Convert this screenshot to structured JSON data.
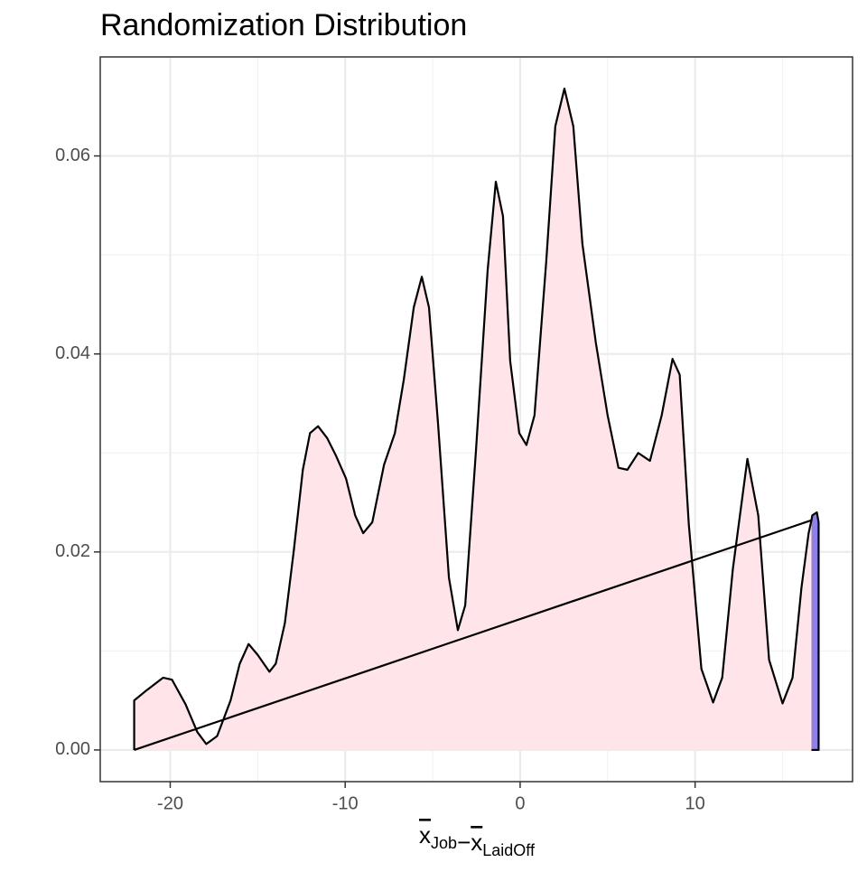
{
  "chart_data": {
    "type": "area",
    "title": "Randomization Distribution",
    "xlabel": [
      {
        "text": "x",
        "sub": "Job"
      },
      {
        "text": "−"
      },
      {
        "text": "x",
        "sub": "LaidOff"
      }
    ],
    "xlim": [
      -24,
      19
    ],
    "ylim": [
      -0.0032,
      0.07
    ],
    "xticks": [
      -20,
      -10,
      0,
      10
    ],
    "yticks": [
      {
        "value": 0,
        "label": "0.00"
      },
      0.02,
      0.04,
      0.06
    ],
    "xminor_ticks": [
      -15,
      -5,
      5,
      15
    ],
    "yminor_ticks": [
      0.01,
      0.03,
      0.05
    ],
    "grid": true,
    "series": [
      {
        "color": "#ffe4e9",
        "x": [
          -22.06,
          -21.44,
          -20.41,
          -19.9,
          -19.12,
          -18.45,
          -17.94,
          -17.32,
          -16.55,
          -16.03,
          -15.52,
          -15.0,
          -14.33,
          -13.97,
          -13.45,
          -12.94,
          -12.42,
          -12.01,
          -11.55,
          -11.03,
          -10.52,
          -9.95,
          -9.43,
          -8.97,
          -8.45,
          -7.78,
          -7.16,
          -6.65,
          -6.08,
          -5.62,
          -5.21,
          -4.69,
          -4.07,
          -3.56,
          -3.14,
          -2.53,
          -1.86,
          -1.39,
          -0.98,
          -0.57,
          -0.05,
          0.36,
          0.82,
          1.49,
          2.01,
          2.53,
          3.04,
          3.56,
          4.33,
          5.0,
          5.62,
          6.13,
          6.75,
          7.42,
          8.09,
          8.71,
          9.12,
          9.64,
          10.36,
          11.03,
          11.55,
          12.16,
          12.99,
          13.61,
          14.23,
          15.0,
          15.57,
          16.08,
          16.49,
          16.65
        ],
        "values": [
          0.005,
          0.0059,
          0.0073,
          0.0071,
          0.0046,
          0.0018,
          0.0006,
          0.0014,
          0.005,
          0.0087,
          0.0107,
          0.0096,
          0.0079,
          0.0087,
          0.0128,
          0.0201,
          0.0283,
          0.032,
          0.0327,
          0.0315,
          0.0297,
          0.0274,
          0.0237,
          0.0219,
          0.023,
          0.0288,
          0.032,
          0.0374,
          0.0447,
          0.0478,
          0.0447,
          0.0329,
          0.0174,
          0.0121,
          0.0146,
          0.0301,
          0.0484,
          0.0574,
          0.0539,
          0.0393,
          0.032,
          0.0308,
          0.0338,
          0.0493,
          0.063,
          0.0668,
          0.063,
          0.0511,
          0.0411,
          0.0338,
          0.0285,
          0.0283,
          0.03,
          0.0292,
          0.0338,
          0.0395,
          0.0379,
          0.0228,
          0.0082,
          0.0048,
          0.0073,
          0.0183,
          0.0294,
          0.0237,
          0.0091,
          0.0047,
          0.0073,
          0.0164,
          0.0219,
          0.0232
        ]
      },
      {
        "color": "#8f7fe8",
        "x": [
          16.65,
          16.7,
          16.96,
          17.06
        ],
        "values": [
          0.0232,
          0.0237,
          0.024,
          0.023
        ]
      }
    ]
  }
}
